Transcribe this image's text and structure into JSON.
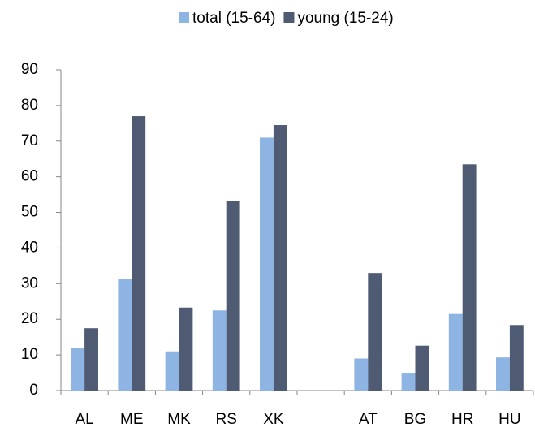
{
  "chart_data": {
    "type": "bar",
    "categories": [
      "AL",
      "ME",
      "MK",
      "RS",
      "XK",
      null,
      "AT",
      "BG",
      "HR",
      "HU"
    ],
    "series": [
      {
        "name": "total (15-64)",
        "color": "#8db4e2",
        "values": [
          12,
          31.3,
          11,
          22.5,
          71,
          null,
          9,
          5,
          21.5,
          9.3
        ]
      },
      {
        "name": "young (15-24)",
        "color": "#4f5b73",
        "values": [
          17.5,
          77,
          23.3,
          53.2,
          74.5,
          null,
          33,
          12.6,
          63.5,
          18.4
        ]
      }
    ],
    "ylim": [
      0,
      90
    ],
    "yticks": [
      0,
      10,
      20,
      30,
      40,
      50,
      60,
      70,
      80,
      90
    ],
    "grid": false,
    "legend": "top"
  }
}
